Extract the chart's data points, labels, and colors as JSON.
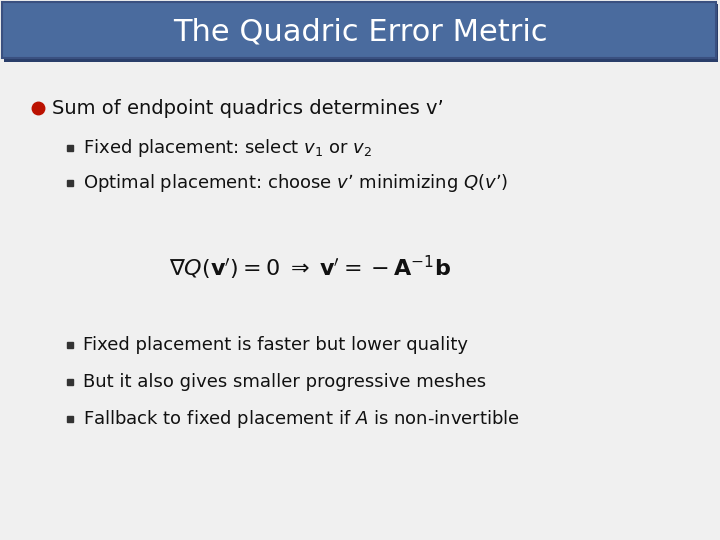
{
  "title": "The Quadric Error Metric",
  "title_bg_color": "#4A6B9E",
  "title_shadow_color": "#2A3E6A",
  "title_text_color": "#FFFFFF",
  "bg_color": "#EFEFEF",
  "bullet_color": "#BB1100",
  "main_bullet": "Sum of endpoint quadrics determines v’",
  "sub_bullets_1": [
    "Fixed placement: select $v_1$ or $v_2$",
    "Optimal placement: choose $v’$ minimizing $Q(v’)$"
  ],
  "sub_bullets_2": [
    "Fixed placement is faster but lower quality",
    "But it also gives smaller progressive meshes",
    "Fallback to fixed placement if $A$ is non-invertible"
  ],
  "font_size_title": 22,
  "font_size_main": 14,
  "font_size_sub": 13,
  "font_size_eq": 14
}
